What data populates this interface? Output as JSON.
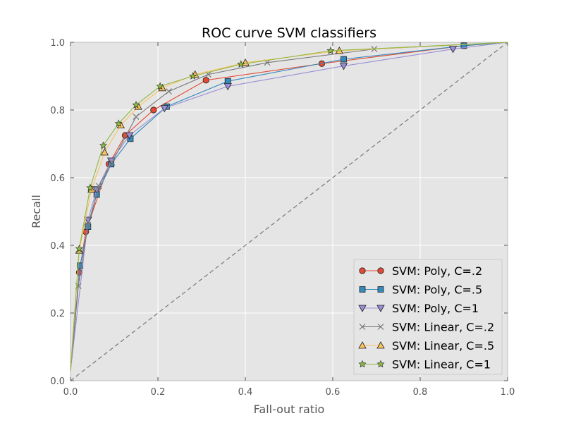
{
  "chart_data": {
    "type": "line",
    "title": "ROC curve SVM classifiers",
    "xlabel": "Fall-out ratio",
    "ylabel": "Recall",
    "xlim": [
      0.0,
      1.0
    ],
    "ylim": [
      0.0,
      1.0
    ],
    "xticks": [
      "0.0",
      "0.2",
      "0.4",
      "0.6",
      "0.8",
      "1.0"
    ],
    "yticks": [
      "0.0",
      "0.2",
      "0.4",
      "0.6",
      "0.8",
      "1.0"
    ],
    "grid": true,
    "legend_position": "bottom-right",
    "reference_line": {
      "x": [
        0,
        1
      ],
      "y": [
        0,
        1
      ],
      "style": "dashed",
      "color": "#777777"
    },
    "series": [
      {
        "name": "SVM: Poly, C=.2",
        "color": "#E24A33",
        "marker": "circle",
        "x": [
          0.0,
          0.02,
          0.035,
          0.088,
          0.125,
          0.19,
          0.31,
          0.575,
          0.9,
          1.0
        ],
        "y": [
          0.03,
          0.32,
          0.44,
          0.64,
          0.725,
          0.8,
          0.888,
          0.937,
          0.99,
          1.0
        ]
      },
      {
        "name": "SVM: Poly, C=.5",
        "color": "#348ABD",
        "marker": "square",
        "x": [
          0.0,
          0.022,
          0.04,
          0.06,
          0.093,
          0.137,
          0.22,
          0.36,
          0.625,
          0.9,
          1.0
        ],
        "y": [
          0.03,
          0.34,
          0.455,
          0.55,
          0.64,
          0.715,
          0.81,
          0.885,
          0.95,
          0.99,
          1.0
        ]
      },
      {
        "name": "SVM: Poly, C=1",
        "color": "#988ED5",
        "marker": "triangle-down",
        "x": [
          0.0,
          0.04,
          0.06,
          0.093,
          0.135,
          0.215,
          0.36,
          0.625,
          0.875,
          1.0
        ],
        "y": [
          0.03,
          0.475,
          0.565,
          0.65,
          0.725,
          0.805,
          0.87,
          0.93,
          0.98,
          1.0
        ]
      },
      {
        "name": "SVM: Linear, C=.2",
        "color": "#777777",
        "marker": "x",
        "x": [
          0.0,
          0.018,
          0.04,
          0.065,
          0.095,
          0.15,
          0.225,
          0.315,
          0.45,
          0.695,
          1.0
        ],
        "y": [
          0.03,
          0.28,
          0.46,
          0.575,
          0.645,
          0.78,
          0.855,
          0.905,
          0.94,
          0.98,
          1.0
        ]
      },
      {
        "name": "SVM: Linear, C=.5",
        "color": "#FBC15E",
        "marker": "triangle-up",
        "x": [
          0.0,
          0.02,
          0.048,
          0.078,
          0.115,
          0.155,
          0.21,
          0.285,
          0.4,
          0.615,
          1.0
        ],
        "y": [
          0.03,
          0.385,
          0.565,
          0.675,
          0.755,
          0.81,
          0.865,
          0.905,
          0.94,
          0.975,
          1.0
        ]
      },
      {
        "name": "SVM: Linear, C=1",
        "color": "#8EBA42",
        "marker": "star",
        "x": [
          0.0,
          0.02,
          0.045,
          0.075,
          0.11,
          0.15,
          0.205,
          0.28,
          0.39,
          0.595,
          1.0
        ],
        "y": [
          0.03,
          0.39,
          0.57,
          0.695,
          0.76,
          0.815,
          0.87,
          0.9,
          0.935,
          0.975,
          1.0
        ]
      }
    ]
  }
}
